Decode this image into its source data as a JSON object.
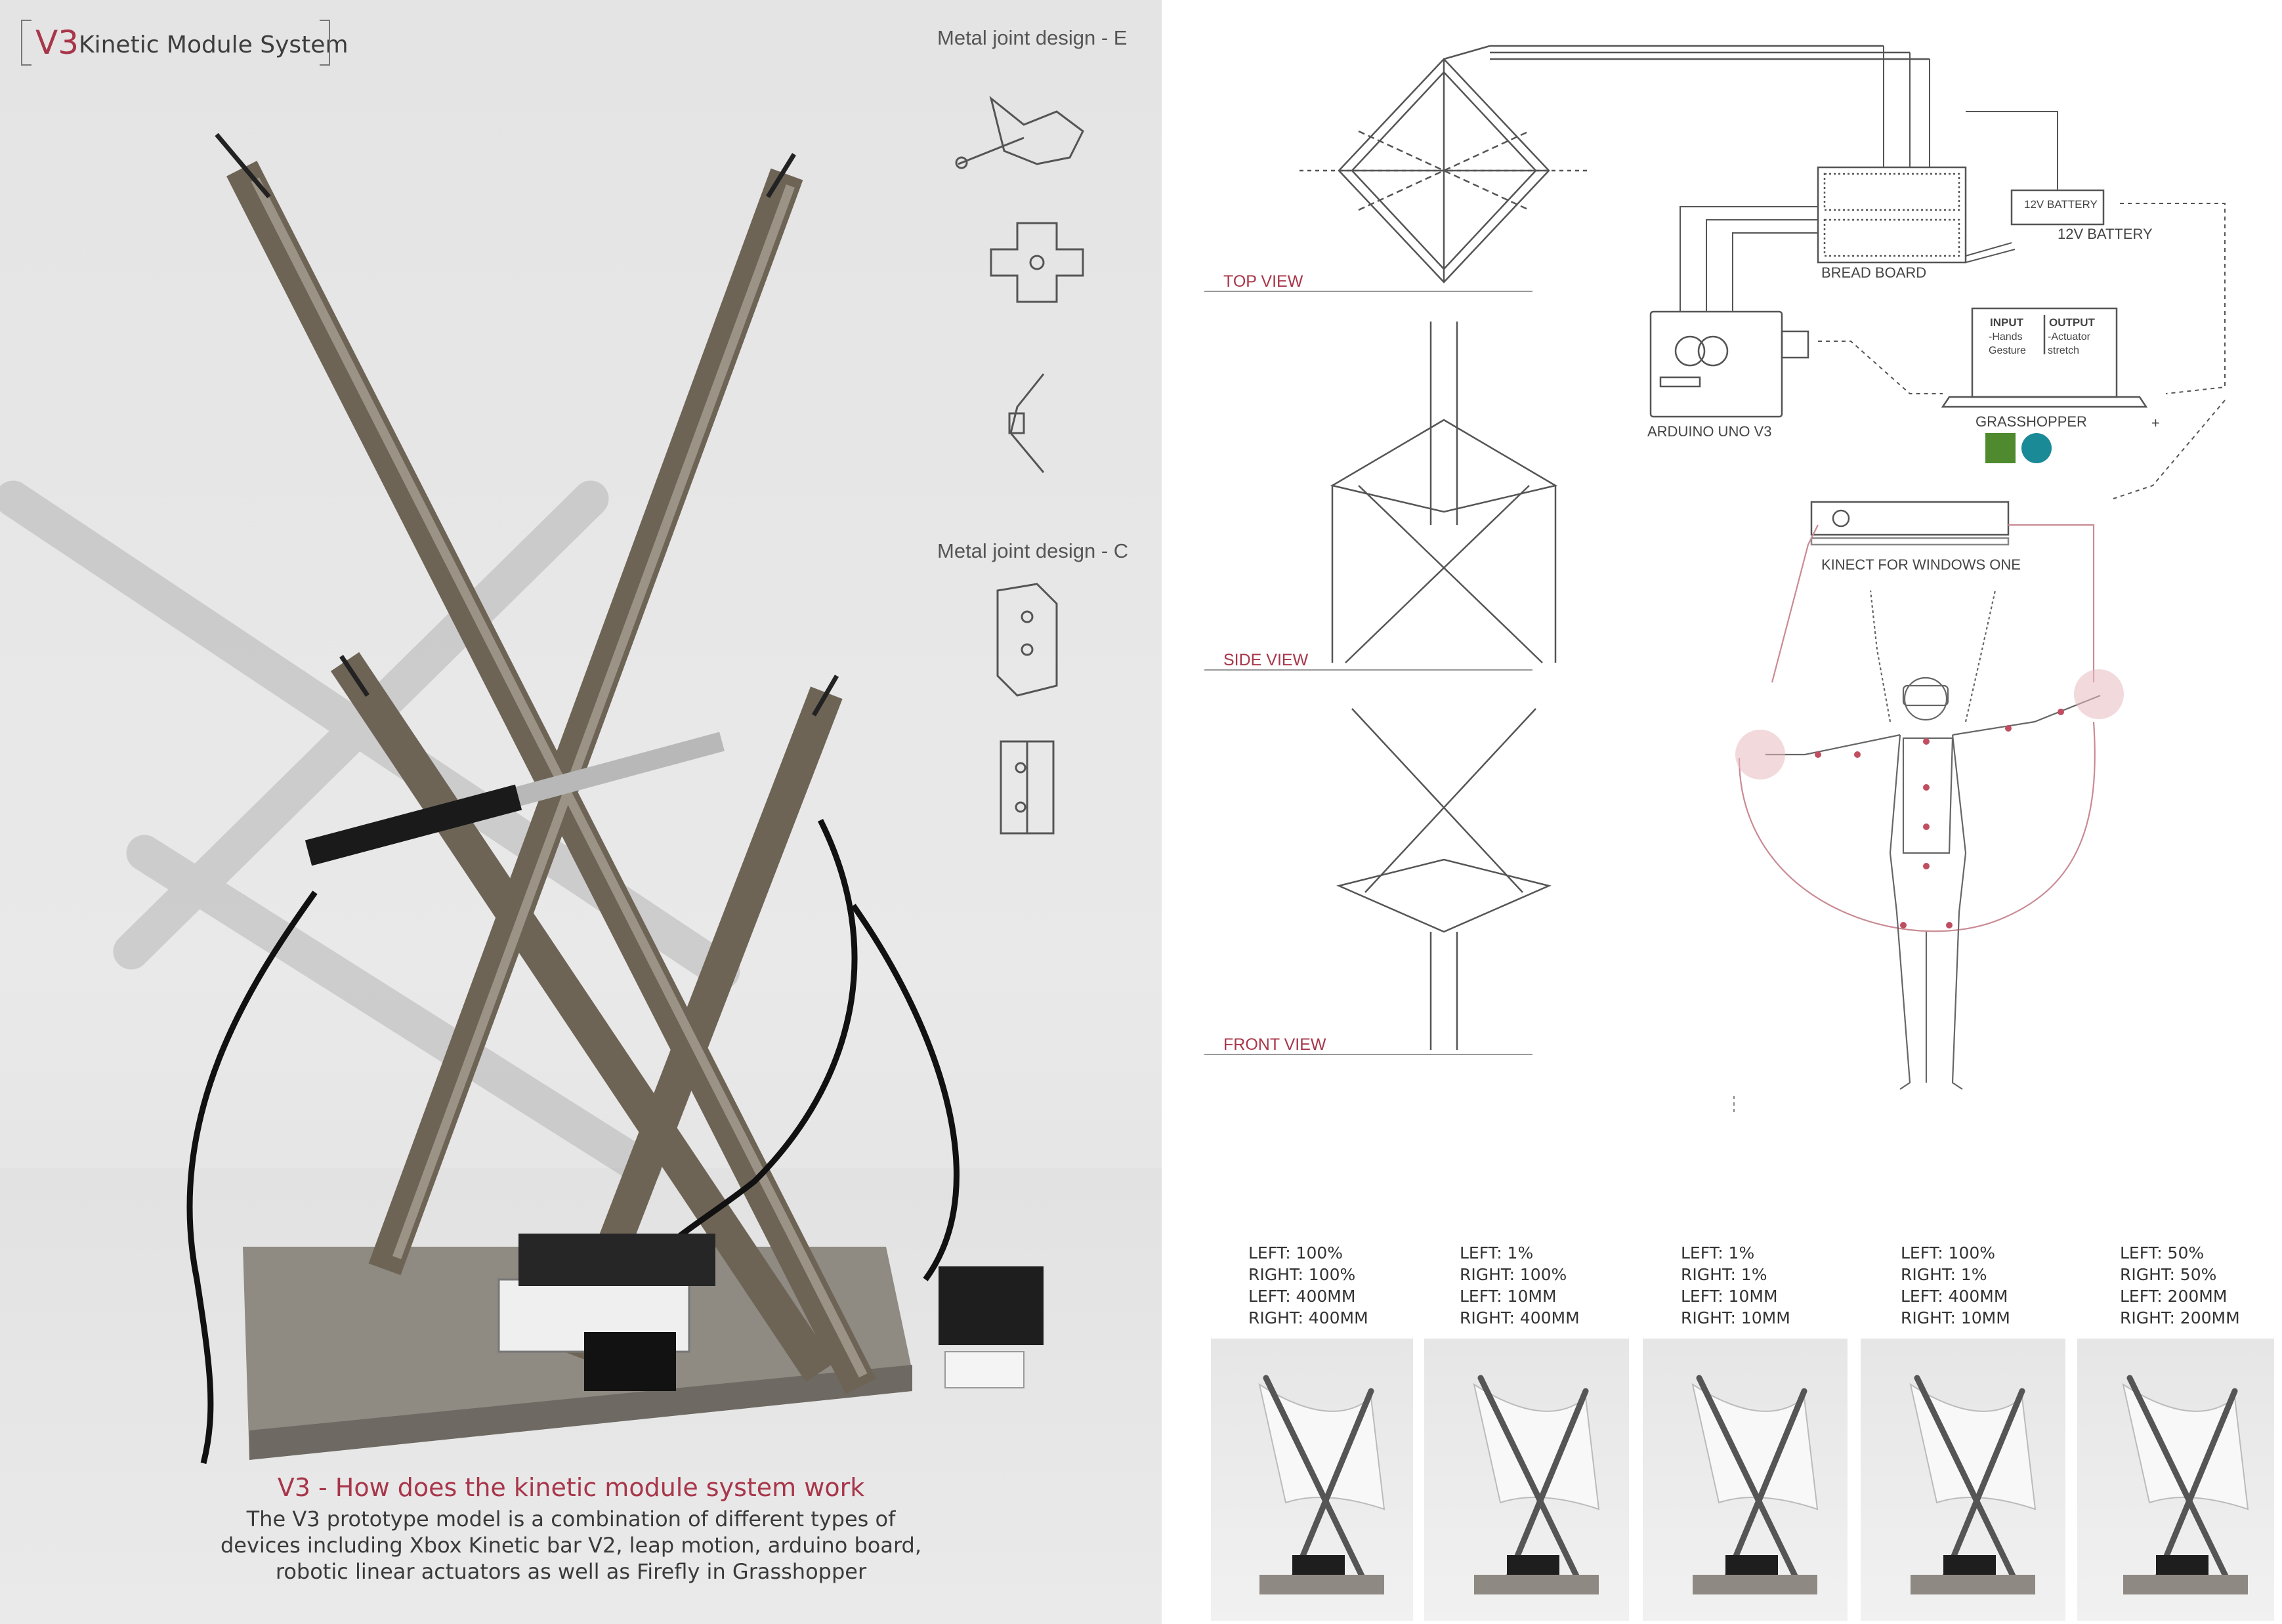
{
  "header": {
    "v3": "V3",
    "title": "Kinetic Module System"
  },
  "joint_labels": {
    "design_e": "Metal joint design - E",
    "design_c": "Metal joint design - C"
  },
  "caption": {
    "title": "V3 - How does the kinetic module system work",
    "body": "The V3 prototype model is a combination of different types of devices including Xbox Kinetic bar V2, leap motion, arduino board, robotic linear actuators as well as Firefly in Grasshopper"
  },
  "views": {
    "top": "TOP VIEW",
    "side": "SIDE VIEW",
    "front": "FRONT VIEW"
  },
  "components": {
    "bread_board": "BREAD BOARD",
    "battery_box": "12V BATTERY",
    "battery": "12V BATTERY",
    "arduino": "ARDUINO UNO V3",
    "grasshopper": "GRASSHOPPER",
    "plus": "+",
    "kinect": "KINECT FOR WINDOWS ONE",
    "input_head": "INPUT",
    "input_1": "-Hands",
    "input_2": "Gesture",
    "output_head": "OUTPUT",
    "output_1": "-Actuator",
    "output_2": "stretch"
  },
  "states": [
    {
      "l1": "LEFT: 100%",
      "l2": "RIGHT: 100%",
      "l3": "LEFT: 400MM",
      "l4": "RIGHT: 400MM"
    },
    {
      "l1": "LEFT: 1%",
      "l2": "RIGHT: 100%",
      "l3": "LEFT: 10MM",
      "l4": "RIGHT: 400MM"
    },
    {
      "l1": "LEFT: 1%",
      "l2": "RIGHT: 1%",
      "l3": "LEFT: 10MM",
      "l4": "RIGHT: 10MM"
    },
    {
      "l1": "LEFT: 100%",
      "l2": "RIGHT: 1%",
      "l3": "LEFT: 400MM",
      "l4": "RIGHT: 10MM"
    },
    {
      "l1": "LEFT: 50%",
      "l2": "RIGHT: 50%",
      "l3": "LEFT: 200MM",
      "l4": "RIGHT: 200MM"
    }
  ],
  "colors": {
    "accent": "#a8364a",
    "line": "#555555",
    "pink": "#e8b9c0"
  }
}
